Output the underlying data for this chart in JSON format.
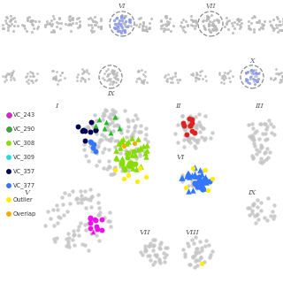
{
  "legend_items": [
    {
      "label": "VC_243",
      "color": "#ee11ee"
    },
    {
      "label": "VC_290",
      "color": "#22bb22"
    },
    {
      "label": "VC_308",
      "color": "#88dd00"
    },
    {
      "label": "VC_309",
      "color": "#22dddd"
    },
    {
      "label": "VC_357",
      "color": "#000055"
    },
    {
      "label": "VC_377",
      "color": "#3377ff"
    },
    {
      "label": "Outlier",
      "color": "#ffee00"
    },
    {
      "label": "Overlap",
      "color": "#ffaa00"
    }
  ],
  "bg_color": "#ffffff",
  "gray_dot": "#b8b8b8",
  "gray_bg": "#c5c5c5"
}
